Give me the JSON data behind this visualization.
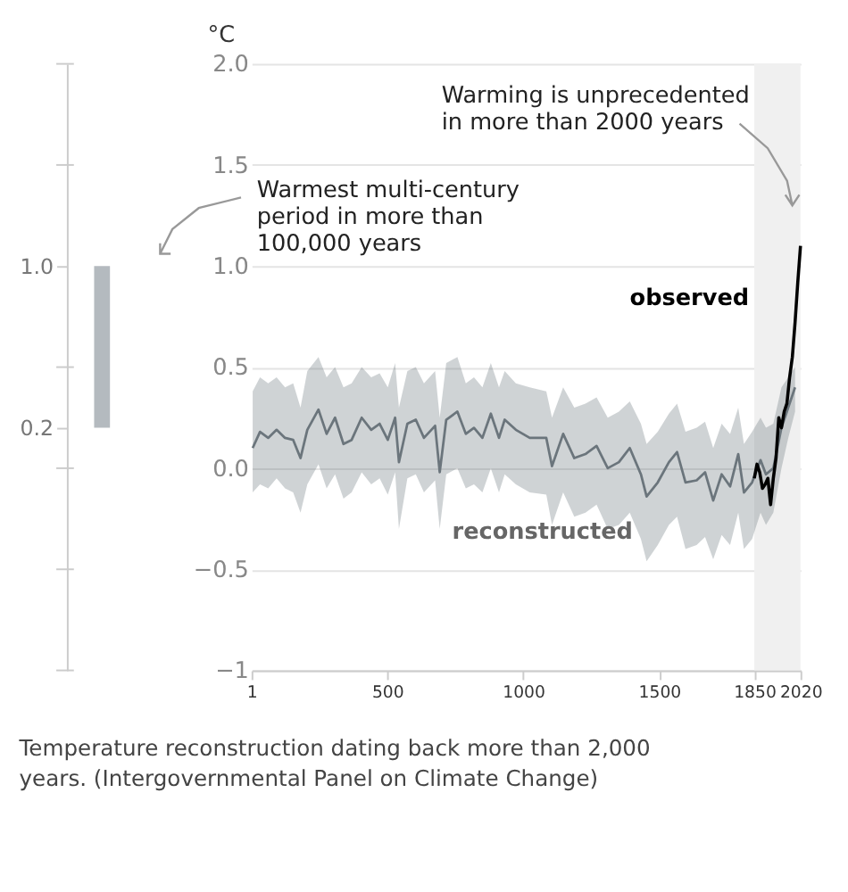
{
  "chart_data": [
    {
      "type": "bar",
      "categories": [
        null
      ],
      "base": [
        0.2
      ],
      "values": [
        0.8
      ],
      "colors": [
        "#b4babf"
      ],
      "ylim": [
        -1,
        2
      ],
      "yticks": [
        {
          "value": 2,
          "label": null
        },
        {
          "value": 1.5,
          "label": null
        },
        {
          "value": 1.0,
          "label": "1.0"
        },
        {
          "value": 0.5,
          "label": null
        },
        {
          "value": 0.2,
          "label": "0.2"
        },
        {
          "value": 0,
          "label": null
        },
        {
          "value": -0.5,
          "label": null
        },
        {
          "value": -1,
          "label": null
        }
      ],
      "tick_labels": "y"
    },
    {
      "type": "line",
      "ylabel": "°C",
      "xlim": [
        1,
        2020
      ],
      "ylim": [
        -1,
        2
      ],
      "xticks": [
        1,
        500,
        1000,
        1500,
        1850,
        2020
      ],
      "yticks": [
        {
          "value": 2,
          "label": "2.0"
        },
        {
          "value": 1.5,
          "label": "1.5"
        },
        {
          "value": 1,
          "label": "1.0"
        },
        {
          "value": 0.5,
          "label": "0.5"
        },
        {
          "value": 0,
          "label": "0.0"
        },
        {
          "value": -0.5,
          "label": "−0.5"
        },
        {
          "value": -1,
          "label": "−1"
        }
      ],
      "grid": "y",
      "bands": [
        {
          "axis": "x",
          "from": 1850,
          "to": 2020,
          "color": "#f0f0f0"
        }
      ],
      "series": [
        {
          "name": "reconstructed",
          "color": "#6b757c",
          "x": [
            5,
            32,
            62,
            93,
            124,
            154,
            181,
            206,
            247,
            277,
            308,
            339,
            369,
            406,
            441,
            472,
            502,
            529,
            543,
            574,
            605,
            635,
            676,
            693,
            717,
            758,
            789,
            819,
            850,
            881,
            911,
            932,
            973,
            1024,
            1085,
            1106,
            1147,
            1188,
            1229,
            1270,
            1311,
            1352,
            1392,
            1433,
            1454,
            1495,
            1536,
            1566,
            1597,
            1638,
            1669,
            1699,
            1730,
            1761,
            1791,
            1812,
            1842,
            1873,
            1893,
            1920,
            1950,
            1975,
            2000
          ],
          "values": [
            0.1,
            0.18,
            0.15,
            0.19,
            0.15,
            0.14,
            0.05,
            0.19,
            0.29,
            0.17,
            0.25,
            0.12,
            0.14,
            0.25,
            0.19,
            0.22,
            0.14,
            0.25,
            0.03,
            0.22,
            0.24,
            0.15,
            0.21,
            -0.02,
            0.24,
            0.28,
            0.17,
            0.2,
            0.15,
            0.27,
            0.15,
            0.24,
            0.19,
            0.15,
            0.15,
            0.01,
            0.17,
            0.05,
            0.07,
            0.11,
            0.0,
            0.03,
            0.1,
            -0.03,
            -0.14,
            -0.07,
            0.03,
            0.08,
            -0.07,
            -0.06,
            -0.02,
            -0.16,
            -0.03,
            -0.09,
            0.07,
            -0.12,
            -0.07,
            0.04,
            -0.03,
            0.0,
            0.2,
            0.3,
            0.4
          ],
          "upper": [
            0.38,
            0.45,
            0.42,
            0.45,
            0.4,
            0.42,
            0.3,
            0.48,
            0.55,
            0.45,
            0.5,
            0.4,
            0.42,
            0.5,
            0.45,
            0.47,
            0.4,
            0.52,
            0.3,
            0.48,
            0.5,
            0.42,
            0.48,
            0.25,
            0.52,
            0.55,
            0.42,
            0.45,
            0.4,
            0.52,
            0.4,
            0.48,
            0.42,
            0.4,
            0.38,
            0.25,
            0.4,
            0.3,
            0.32,
            0.35,
            0.25,
            0.28,
            0.33,
            0.22,
            0.12,
            0.18,
            0.27,
            0.32,
            0.18,
            0.2,
            0.23,
            0.1,
            0.22,
            0.17,
            0.3,
            0.12,
            0.18,
            0.25,
            0.2,
            0.22,
            0.4,
            0.45,
            0.5
          ],
          "lower": [
            -0.12,
            -0.08,
            -0.1,
            -0.05,
            -0.1,
            -0.12,
            -0.22,
            -0.08,
            0.02,
            -0.1,
            -0.03,
            -0.15,
            -0.12,
            -0.02,
            -0.08,
            -0.05,
            -0.13,
            -0.02,
            -0.3,
            -0.05,
            -0.03,
            -0.12,
            -0.06,
            -0.3,
            -0.03,
            0.0,
            -0.1,
            -0.08,
            -0.12,
            0.0,
            -0.12,
            -0.03,
            -0.08,
            -0.12,
            -0.13,
            -0.28,
            -0.12,
            -0.24,
            -0.22,
            -0.18,
            -0.3,
            -0.28,
            -0.22,
            -0.35,
            -0.46,
            -0.38,
            -0.28,
            -0.24,
            -0.4,
            -0.38,
            -0.34,
            -0.45,
            -0.33,
            -0.38,
            -0.22,
            -0.4,
            -0.35,
            -0.22,
            -0.28,
            -0.22,
            0.0,
            0.15,
            0.28
          ]
        },
        {
          "name": "observed",
          "color": "#000000",
          "x": [
            1850,
            1860,
            1870,
            1880,
            1890,
            1900,
            1910,
            1920,
            1930,
            1940,
            1950,
            1960,
            1970,
            1980,
            1990,
            2000,
            2010,
            2020
          ],
          "values": [
            -0.05,
            0.02,
            -0.02,
            -0.1,
            -0.08,
            -0.05,
            -0.18,
            -0.05,
            0.05,
            0.25,
            0.2,
            0.28,
            0.32,
            0.45,
            0.55,
            0.72,
            0.92,
            1.1
          ]
        }
      ],
      "annotations": [
        {
          "text": "Warming is unprecedented in more than 2000 years",
          "x": 1990,
          "y": 1.3
        },
        "Warmest multi-century period in more than 100,000 years",
        "Temperature reconstruction dating back more than 2,000 years. (Intergovernmental Panel on Climate Change)"
      ]
    }
  ]
}
